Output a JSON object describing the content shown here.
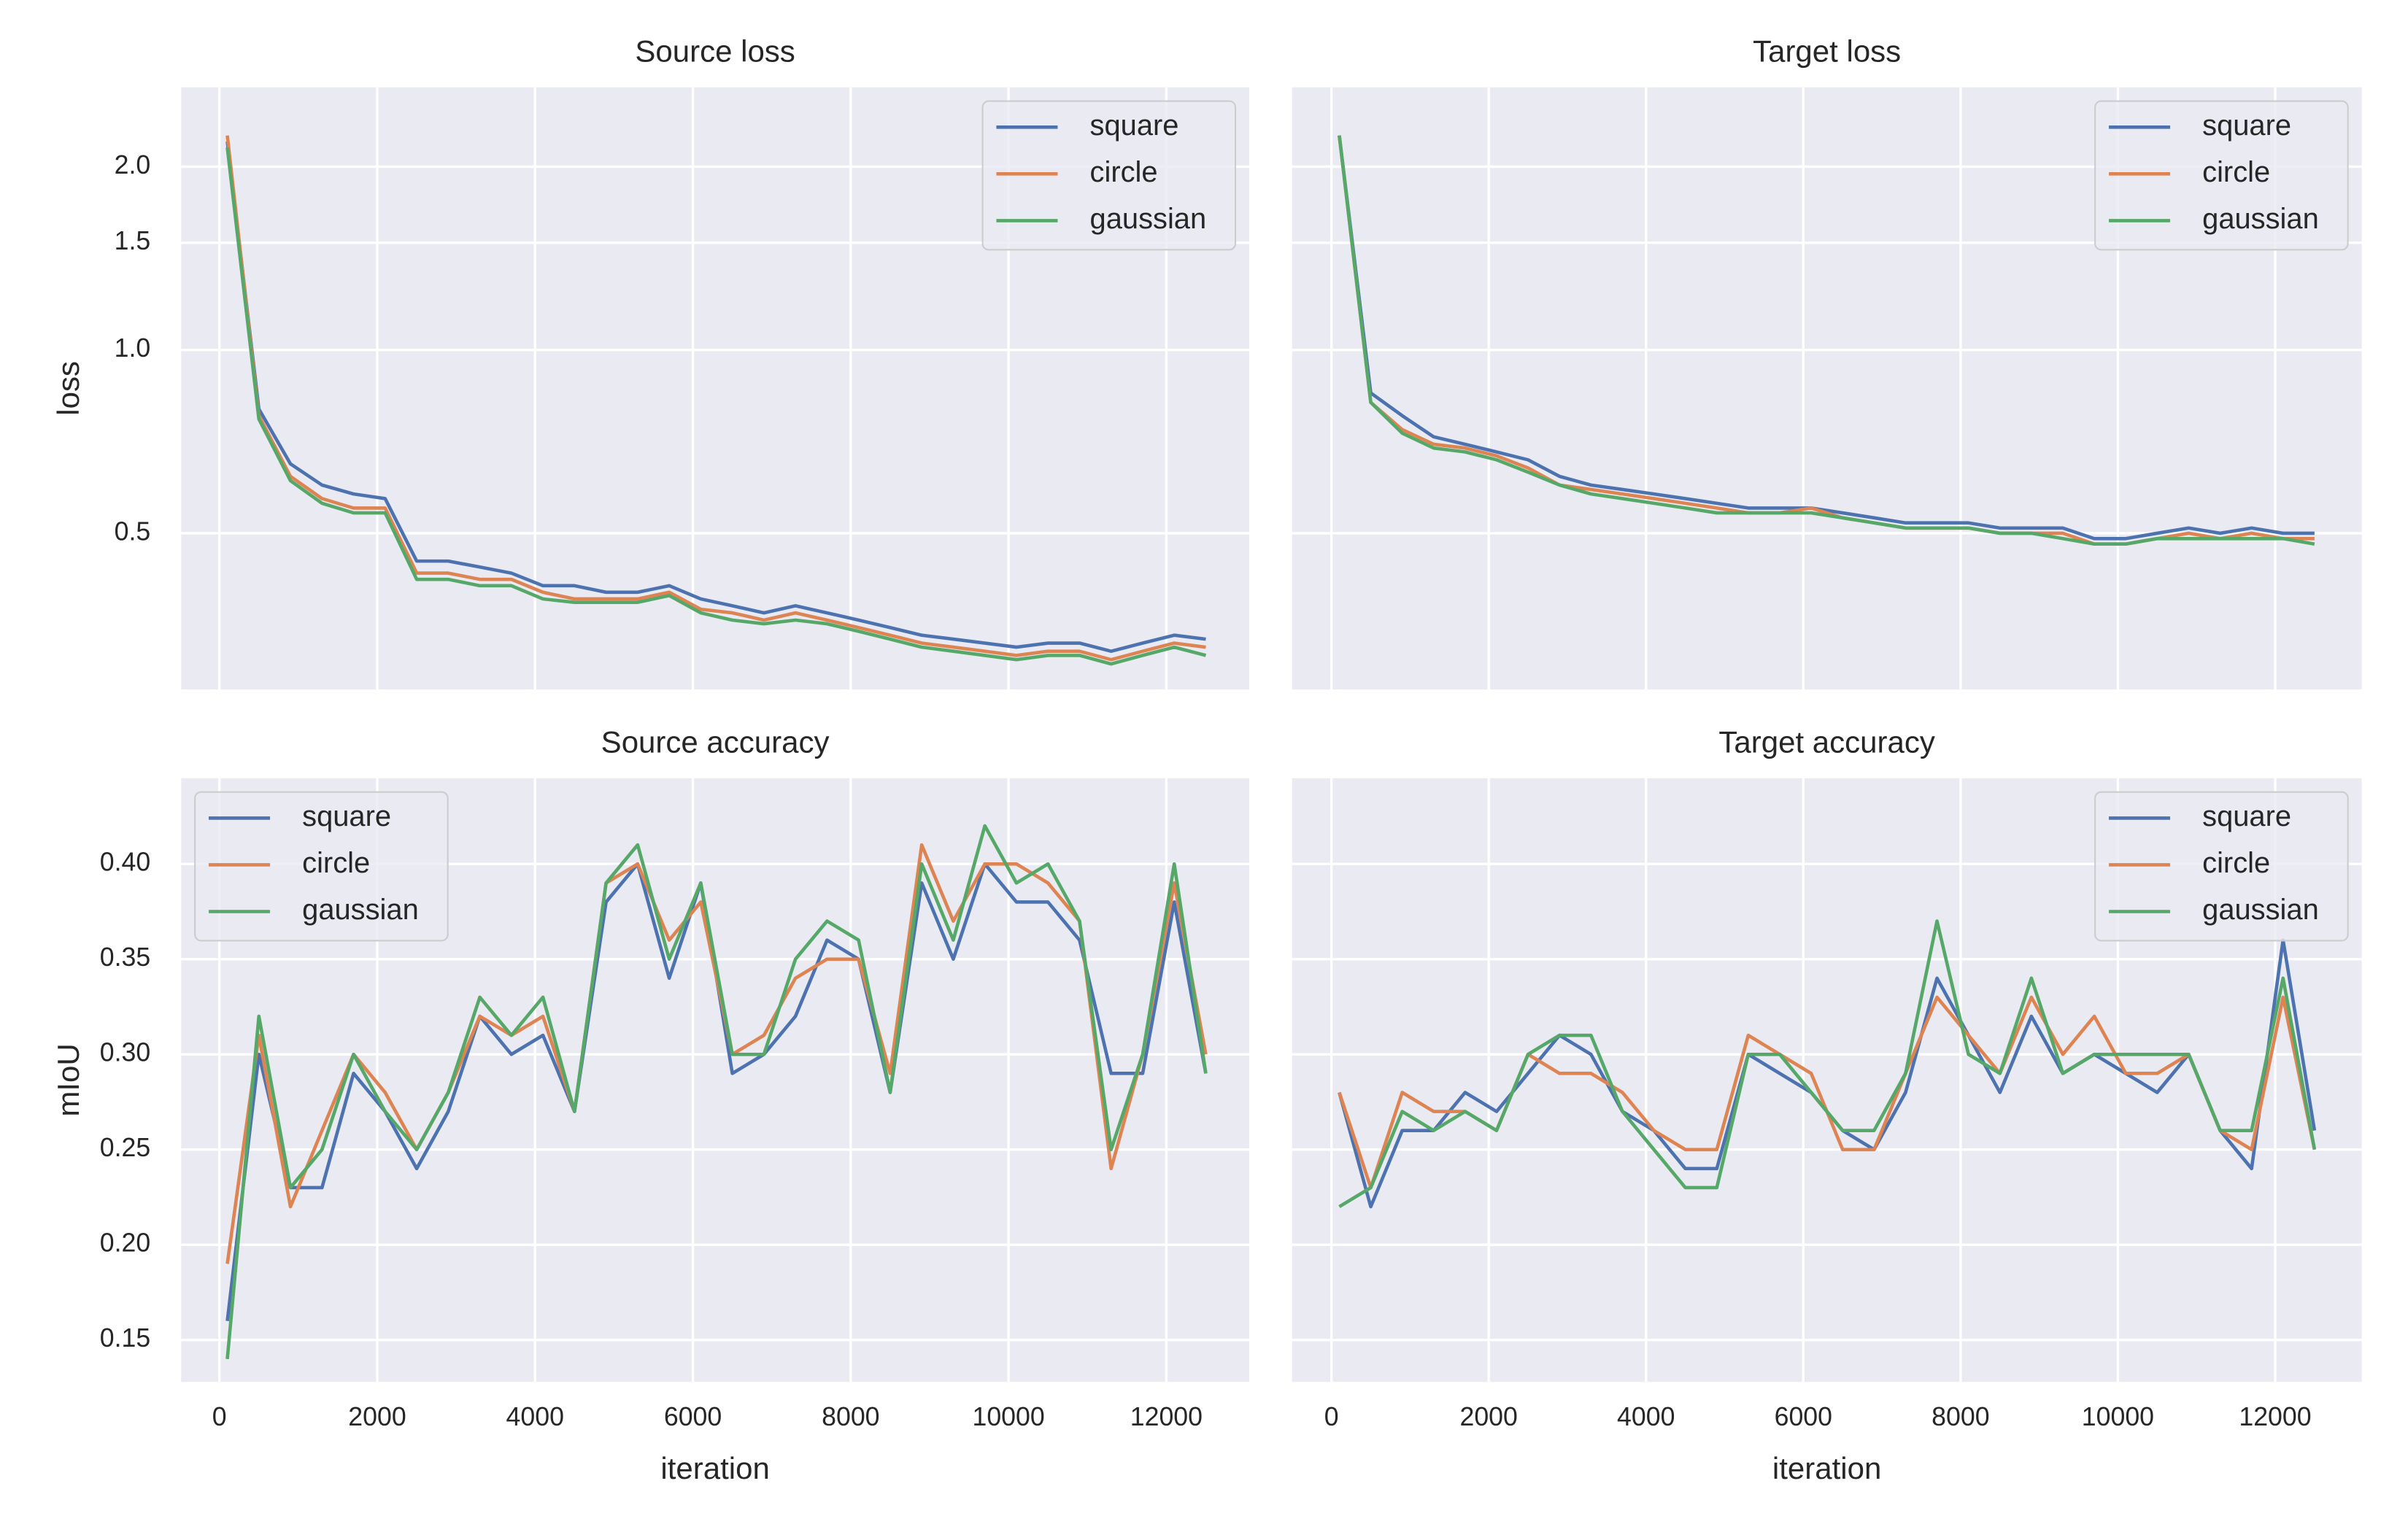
{
  "chart_data": [
    {
      "type": "line",
      "title": "Source loss",
      "ylabel": "loss",
      "yscale": "log",
      "grid": true,
      "legend": "upper right",
      "xtick_labels": false,
      "ytick_labels": true,
      "xlim": [
        -485,
        13050
      ],
      "ylim": [
        0.277,
        2.7
      ],
      "xticks": [
        0,
        2000,
        4000,
        6000,
        8000,
        10000,
        12000
      ],
      "yticks": [
        0.5,
        {
          "value": 1,
          "label": "1.0"
        },
        1.5,
        {
          "value": 2,
          "label": "2.0"
        }
      ],
      "x": [
        100,
        500,
        900,
        1300,
        1700,
        2100,
        2500,
        2900,
        3300,
        3700,
        4100,
        4500,
        4900,
        5300,
        5700,
        6100,
        6500,
        6900,
        7300,
        7700,
        8100,
        8500,
        8900,
        9300,
        9700,
        10100,
        10500,
        10900,
        11300,
        11700,
        12100,
        12500
      ],
      "series": [
        {
          "name": "square",
          "color": "#4c72b0",
          "values": [
            2.2,
            0.8,
            0.65,
            0.6,
            0.58,
            0.57,
            0.45,
            0.45,
            0.44,
            0.43,
            0.41,
            0.41,
            0.4,
            0.4,
            0.41,
            0.39,
            0.38,
            0.37,
            0.38,
            0.37,
            0.36,
            0.35,
            0.34,
            0.335,
            0.33,
            0.325,
            0.33,
            0.33,
            0.32,
            0.33,
            0.34,
            0.335
          ]
        },
        {
          "name": "circle",
          "color": "#dd8452",
          "values": [
            2.25,
            0.78,
            0.62,
            0.57,
            0.55,
            0.55,
            0.43,
            0.43,
            0.42,
            0.42,
            0.4,
            0.39,
            0.39,
            0.39,
            0.4,
            0.375,
            0.37,
            0.36,
            0.37,
            0.36,
            0.35,
            0.34,
            0.33,
            0.325,
            0.32,
            0.315,
            0.32,
            0.32,
            0.31,
            0.32,
            0.33,
            0.325
          ]
        },
        {
          "name": "gaussian",
          "color": "#55a868",
          "values": [
            2.15,
            0.77,
            0.61,
            0.56,
            0.54,
            0.54,
            0.42,
            0.42,
            0.41,
            0.41,
            0.39,
            0.385,
            0.385,
            0.385,
            0.395,
            0.37,
            0.36,
            0.355,
            0.36,
            0.355,
            0.345,
            0.335,
            0.325,
            0.32,
            0.315,
            0.31,
            0.315,
            0.315,
            0.305,
            0.315,
            0.325,
            0.315
          ]
        }
      ]
    },
    {
      "type": "line",
      "title": "Target loss",
      "yscale": "log",
      "grid": true,
      "legend": "upper right",
      "xtick_labels": false,
      "ytick_labels": false,
      "xlim": [
        -500,
        13100
      ],
      "ylim": [
        0.277,
        2.7
      ],
      "xticks": [
        0,
        2000,
        4000,
        6000,
        8000,
        10000,
        12000
      ],
      "yticks": [
        0.5,
        1,
        1.5,
        2
      ],
      "x": [
        100,
        500,
        900,
        1300,
        1700,
        2100,
        2500,
        2900,
        3300,
        3700,
        4100,
        4500,
        4900,
        5300,
        5700,
        6100,
        6500,
        6900,
        7300,
        7700,
        8100,
        8500,
        8900,
        9300,
        9700,
        10100,
        10500,
        10900,
        11300,
        11700,
        12100,
        12500
      ],
      "series": [
        {
          "name": "square",
          "color": "#4c72b0",
          "values": [
            2.25,
            0.85,
            0.78,
            0.72,
            0.7,
            0.68,
            0.66,
            0.62,
            0.6,
            0.59,
            0.58,
            0.57,
            0.56,
            0.55,
            0.55,
            0.55,
            0.54,
            0.53,
            0.52,
            0.52,
            0.52,
            0.51,
            0.51,
            0.51,
            0.49,
            0.49,
            0.5,
            0.51,
            0.5,
            0.51,
            0.5,
            0.5
          ]
        },
        {
          "name": "circle",
          "color": "#dd8452",
          "values": [
            2.25,
            0.82,
            0.74,
            0.7,
            0.69,
            0.67,
            0.64,
            0.6,
            0.59,
            0.58,
            0.57,
            0.56,
            0.55,
            0.54,
            0.54,
            0.55,
            0.53,
            0.52,
            0.51,
            0.51,
            0.51,
            0.5,
            0.5,
            0.5,
            0.48,
            0.48,
            0.49,
            0.5,
            0.49,
            0.5,
            0.49,
            0.49
          ]
        },
        {
          "name": "gaussian",
          "color": "#55a868",
          "values": [
            2.25,
            0.82,
            0.73,
            0.69,
            0.68,
            0.66,
            0.63,
            0.6,
            0.58,
            0.57,
            0.56,
            0.55,
            0.54,
            0.54,
            0.54,
            0.54,
            0.53,
            0.52,
            0.51,
            0.51,
            0.51,
            0.5,
            0.5,
            0.49,
            0.48,
            0.48,
            0.49,
            0.49,
            0.49,
            0.49,
            0.49,
            0.48
          ]
        }
      ]
    },
    {
      "type": "line",
      "title": "Source accuracy",
      "ylabel": "mIoU",
      "xlabel": "iteration",
      "grid": true,
      "legend": "upper left",
      "xtick_labels": true,
      "ytick_labels": true,
      "xlim": [
        -485,
        13050
      ],
      "ylim": [
        0.128,
        0.445
      ],
      "xticks": [
        0,
        2000,
        4000,
        6000,
        8000,
        10000,
        12000
      ],
      "yticks": [
        0.15,
        {
          "value": 0.2,
          "label": "0.20"
        },
        0.25,
        {
          "value": 0.3,
          "label": "0.30"
        },
        0.35,
        {
          "value": 0.4,
          "label": "0.40"
        }
      ],
      "x": [
        100,
        500,
        900,
        1300,
        1700,
        2100,
        2500,
        2900,
        3300,
        3700,
        4100,
        4500,
        4900,
        5300,
        5700,
        6100,
        6500,
        6900,
        7300,
        7700,
        8100,
        8500,
        8900,
        9300,
        9700,
        10100,
        10500,
        10900,
        11300,
        11700,
        12100,
        12500
      ],
      "series": [
        {
          "name": "square",
          "color": "#4c72b0",
          "values": [
            0.16,
            0.3,
            0.23,
            0.23,
            0.29,
            0.27,
            0.24,
            0.27,
            0.32,
            0.3,
            0.31,
            0.27,
            0.38,
            0.4,
            0.34,
            0.39,
            0.29,
            0.3,
            0.32,
            0.36,
            0.35,
            0.28,
            0.39,
            0.35,
            0.4,
            0.38,
            0.38,
            0.36,
            0.29,
            0.29,
            0.38,
            0.29
          ]
        },
        {
          "name": "circle",
          "color": "#dd8452",
          "values": [
            0.19,
            0.31,
            0.22,
            0.26,
            0.3,
            0.28,
            0.25,
            0.28,
            0.32,
            0.31,
            0.32,
            0.27,
            0.39,
            0.4,
            0.36,
            0.38,
            0.3,
            0.31,
            0.34,
            0.35,
            0.35,
            0.29,
            0.41,
            0.37,
            0.4,
            0.4,
            0.39,
            0.37,
            0.24,
            0.3,
            0.39,
            0.3
          ]
        },
        {
          "name": "gaussian",
          "color": "#55a868",
          "values": [
            0.14,
            0.32,
            0.23,
            0.25,
            0.3,
            0.27,
            0.25,
            0.28,
            0.33,
            0.31,
            0.33,
            0.27,
            0.39,
            0.41,
            0.35,
            0.39,
            0.3,
            0.3,
            0.35,
            0.37,
            0.36,
            0.28,
            0.4,
            0.36,
            0.42,
            0.39,
            0.4,
            0.37,
            0.25,
            0.3,
            0.4,
            0.29
          ]
        }
      ]
    },
    {
      "type": "line",
      "title": "Target accuracy",
      "xlabel": "iteration",
      "grid": true,
      "legend": "upper right",
      "xtick_labels": true,
      "ytick_labels": false,
      "xlim": [
        -500,
        13100
      ],
      "ylim": [
        0.128,
        0.445
      ],
      "xticks": [
        0,
        2000,
        4000,
        6000,
        8000,
        10000,
        12000
      ],
      "yticks": [
        0.15,
        0.2,
        0.25,
        0.3,
        0.35,
        0.4
      ],
      "x": [
        100,
        500,
        900,
        1300,
        1700,
        2100,
        2500,
        2900,
        3300,
        3700,
        4100,
        4500,
        4900,
        5300,
        5700,
        6100,
        6500,
        6900,
        7300,
        7700,
        8100,
        8500,
        8900,
        9300,
        9700,
        10100,
        10500,
        10900,
        11300,
        11700,
        12100,
        12500
      ],
      "series": [
        {
          "name": "square",
          "color": "#4c72b0",
          "values": [
            0.28,
            0.22,
            0.26,
            0.26,
            0.28,
            0.27,
            0.29,
            0.31,
            0.3,
            0.27,
            0.26,
            0.24,
            0.24,
            0.3,
            0.29,
            0.28,
            0.26,
            0.25,
            0.28,
            0.34,
            0.31,
            0.28,
            0.32,
            0.29,
            0.3,
            0.29,
            0.28,
            0.3,
            0.26,
            0.24,
            0.36,
            0.26
          ]
        },
        {
          "name": "circle",
          "color": "#dd8452",
          "values": [
            0.28,
            0.23,
            0.28,
            0.27,
            0.27,
            0.26,
            0.3,
            0.29,
            0.29,
            0.28,
            0.26,
            0.25,
            0.25,
            0.31,
            0.3,
            0.29,
            0.25,
            0.25,
            0.29,
            0.33,
            0.31,
            0.29,
            0.33,
            0.3,
            0.32,
            0.29,
            0.29,
            0.3,
            0.26,
            0.25,
            0.33,
            0.25
          ]
        },
        {
          "name": "gaussian",
          "color": "#55a868",
          "values": [
            0.22,
            0.23,
            0.27,
            0.26,
            0.27,
            0.26,
            0.3,
            0.31,
            0.31,
            0.27,
            0.25,
            0.23,
            0.23,
            0.3,
            0.3,
            0.28,
            0.26,
            0.26,
            0.29,
            0.37,
            0.3,
            0.29,
            0.34,
            0.29,
            0.3,
            0.3,
            0.3,
            0.3,
            0.26,
            0.26,
            0.34,
            0.25
          ]
        }
      ]
    }
  ]
}
